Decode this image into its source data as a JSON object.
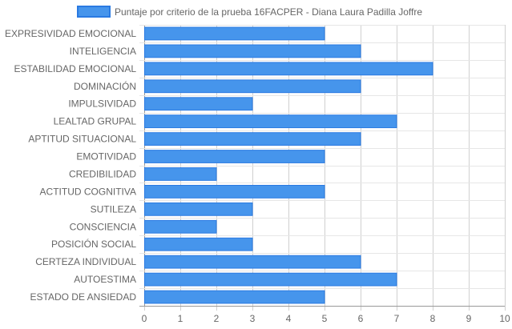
{
  "chart_data": {
    "type": "bar",
    "orientation": "horizontal",
    "categories": [
      "EXPRESIVIDAD EMOCIONAL",
      "INTELIGENCIA",
      "ESTABILIDAD EMOCIONAL",
      "DOMINACIÓN",
      "IMPULSIVIDAD",
      "LEALTAD GRUPAL",
      "APTITUD SITUACIONAL",
      "EMOTIVIDAD",
      "CREDIBILIDAD",
      "ACTITUD COGNITIVA",
      "SUTILEZA",
      "CONSCIENCIA",
      "POSICIÓN SOCIAL",
      "CERTEZA INDIVIDUAL",
      "AUTOESTIMA",
      "ESTADO DE ANSIEDAD"
    ],
    "series": [
      {
        "name": "Puntaje por criterio de la prueba 16FACPER - Diana Laura Padilla Joffre",
        "values": [
          5,
          6,
          8,
          6,
          3,
          7,
          6,
          5,
          2,
          5,
          3,
          2,
          3,
          6,
          7,
          5
        ],
        "color": "#4695ec",
        "border_color": "#2a7ae2"
      }
    ],
    "xlim": [
      0,
      10
    ],
    "x_ticks": [
      "0",
      "1",
      "2",
      "3",
      "4",
      "5",
      "6",
      "7",
      "8",
      "9",
      "10"
    ],
    "grid": true,
    "legend_position": "top",
    "title": "",
    "xlabel": "",
    "ylabel": ""
  }
}
